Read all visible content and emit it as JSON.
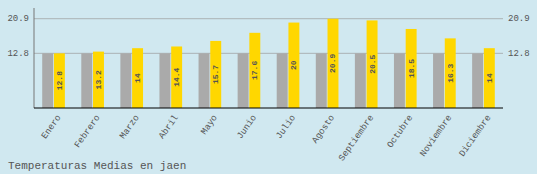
{
  "chart_data": {
    "type": "bar",
    "title": "Temperaturas Medias en jaen",
    "categories": [
      "Enero",
      "Febrero",
      "Marzo",
      "Abril",
      "Mayo",
      "Junio",
      "Julio",
      "Agosto",
      "Septiembre",
      "Octubre",
      "Noviembre",
      "Diciembre"
    ],
    "series": [
      {
        "color": "#AAAAAA",
        "values": [
          12.8,
          12.8,
          12.8,
          12.8,
          12.8,
          12.8,
          12.8,
          12.8,
          12.8,
          12.8,
          12.8,
          12.8
        ]
      },
      {
        "color": "#FFD700",
        "values": [
          12.8,
          13.2,
          14.0,
          14.4,
          15.7,
          17.6,
          20.0,
          20.9,
          20.5,
          18.5,
          16.3,
          14.0
        ],
        "data_labels": true
      }
    ],
    "ylim": [
      0,
      23.408
    ],
    "yticks": [
      12.8,
      20.9
    ],
    "grid": true
  }
}
